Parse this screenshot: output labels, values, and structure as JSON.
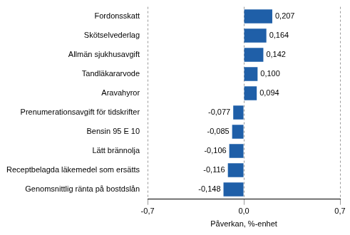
{
  "chart_data": {
    "type": "bar",
    "orientation": "horizontal",
    "categories": [
      "Fordonsskatt",
      "Skötselvederlag",
      "Allmän sjukhusavgift",
      "Tandläkararvode",
      "Aravahyror",
      "Prenumerationsavgift för tidskrifter",
      "Bensin 95 E 10",
      "Lätt brännolja",
      "Receptbelagda läkemedel som ersätts",
      "Genomsnittlig ränta på bostdslån"
    ],
    "values": [
      0.207,
      0.164,
      0.142,
      0.1,
      0.094,
      -0.077,
      -0.085,
      -0.106,
      -0.116,
      -0.148
    ],
    "value_labels": [
      "0,207",
      "0,164",
      "0,142",
      "0,100",
      "0,094",
      "-0,077",
      "-0,085",
      "-0,106",
      "-0,116",
      "-0,148"
    ],
    "data_labels": true,
    "color": "#1f5fa8",
    "x_label": "Påverkan, %-enhet",
    "xlim": [
      -0.7,
      0.7
    ],
    "xticks": [
      {
        "value": -0.7,
        "label": "-0,7"
      },
      {
        "value": 0,
        "label": "0,0"
      },
      {
        "value": 0.7,
        "label": "0,7"
      }
    ],
    "grid": true
  }
}
